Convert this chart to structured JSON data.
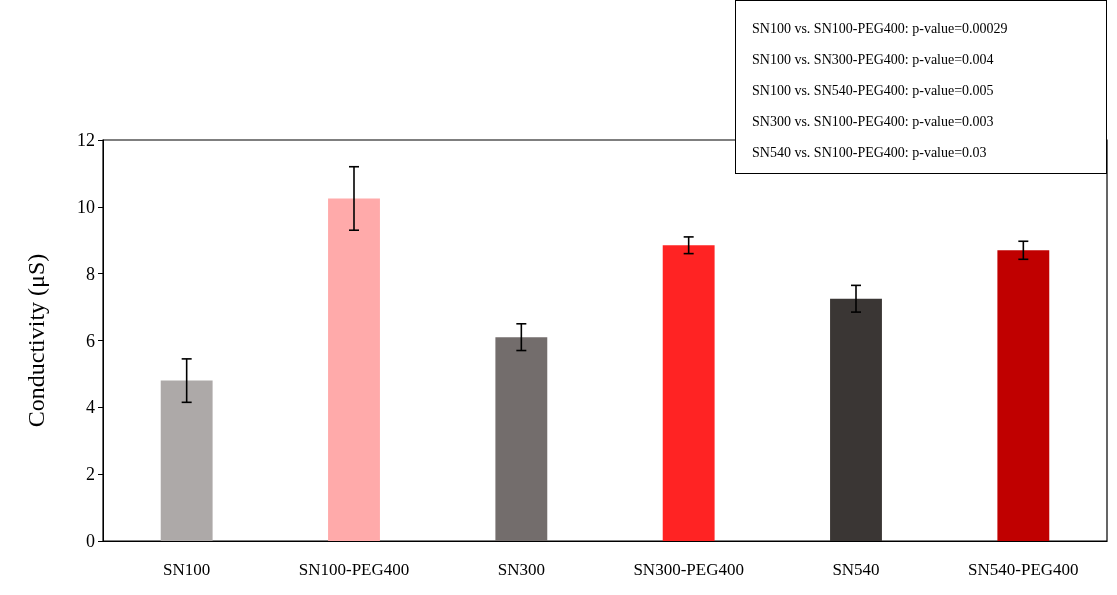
{
  "chart_data": {
    "type": "bar",
    "ylabel": "Conductivity (μS)",
    "categories": [
      "SN100",
      "SN100-PEG400",
      "SN300",
      "SN300-PEG400",
      "SN540",
      "SN540-PEG400"
    ],
    "values": [
      4.8,
      10.25,
      6.1,
      8.85,
      7.25,
      8.7
    ],
    "errors": [
      0.65,
      0.95,
      0.4,
      0.25,
      0.4,
      0.27
    ],
    "colors": [
      "#ada9a8",
      "#ffaaaa",
      "#736d6c",
      "#ff2323",
      "#3a3634",
      "#c00000"
    ],
    "ylim": [
      0,
      12
    ],
    "yticks": [
      0,
      2,
      4,
      6,
      8,
      10,
      12
    ],
    "grid": false,
    "annotations": [
      "SN100 vs. SN100-PEG400: p-value=0.00029",
      "SN100 vs. SN300-PEG400: p-value=0.004",
      "SN100 vs. SN540-PEG400: p-value=0.005",
      "SN300 vs. SN100-PEG400: p-value=0.003",
      "SN540 vs. SN100-PEG400: p-value=0.03"
    ]
  }
}
